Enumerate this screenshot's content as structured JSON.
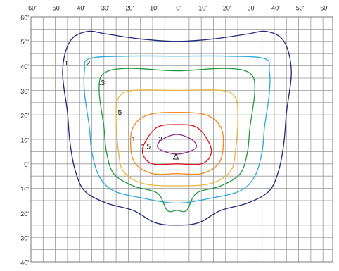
{
  "chart_data": {
    "type": "contour",
    "xlim": [
      -60,
      64
    ],
    "ylim": [
      -40,
      60
    ],
    "xticks": [
      {
        "value": -60,
        "label": "60'"
      },
      {
        "value": -50,
        "label": "50'"
      },
      {
        "value": -40,
        "label": "40'"
      },
      {
        "value": -30,
        "label": "30'"
      },
      {
        "value": -20,
        "label": "20'"
      },
      {
        "value": -10,
        "label": "10'"
      },
      {
        "value": 0,
        "label": "0'"
      },
      {
        "value": 10,
        "label": "10'"
      },
      {
        "value": 20,
        "label": "20'"
      },
      {
        "value": 30,
        "label": "30'"
      },
      {
        "value": 40,
        "label": "40'"
      },
      {
        "value": 50,
        "label": "50'"
      },
      {
        "value": 60,
        "label": "60'"
      }
    ],
    "yticks": [
      {
        "value": 60,
        "label": "60'"
      },
      {
        "value": 50,
        "label": "50'"
      },
      {
        "value": 40,
        "label": "40'"
      },
      {
        "value": 30,
        "label": "30'"
      },
      {
        "value": 20,
        "label": "20'"
      },
      {
        "value": 10,
        "label": "10'"
      },
      {
        "value": 0,
        "label": "0'"
      },
      {
        "value": -10,
        "label": "10'"
      },
      {
        "value": -20,
        "label": "20'"
      },
      {
        "value": -30,
        "label": "30'"
      },
      {
        "value": -40,
        "label": "40'"
      }
    ],
    "grid": true,
    "series": [
      {
        "name": ".1",
        "color": "#1f2a7a",
        "x": [
          0,
          -15,
          -29,
          -37,
          -44,
          -47,
          -45,
          -44,
          -42,
          -38,
          -29,
          -18,
          -9,
          0,
          9,
          18,
          29,
          38,
          42,
          44,
          45,
          47,
          44,
          37,
          29,
          15
        ],
        "y": [
          50,
          51,
          53,
          54,
          50,
          38,
          21,
          9,
          -2,
          -11,
          -16,
          -19,
          -24,
          -25,
          -24,
          -19,
          -16,
          -11,
          -2,
          9,
          21,
          38,
          50,
          54,
          53,
          51
        ]
      },
      {
        "name": ".2",
        "color": "#29a9e0",
        "x": [
          0,
          -20,
          -36,
          -38,
          -38,
          -36,
          -35,
          -32,
          -26,
          -14,
          0,
          14,
          26,
          32,
          35,
          36,
          38,
          38,
          36,
          20
        ],
        "y": [
          44,
          44,
          43,
          38,
          29,
          15,
          5,
          -5,
          -11,
          -14,
          -16,
          -14,
          -11,
          -5,
          5,
          15,
          29,
          38,
          43,
          44
        ]
      },
      {
        "name": ".3",
        "color": "#1f9a3c",
        "x": [
          0,
          -20,
          -30,
          -32,
          -30,
          -29,
          -26,
          -18,
          -8,
          -4,
          0,
          4,
          8,
          18,
          26,
          29,
          30,
          32,
          30,
          20
        ],
        "y": [
          38,
          39,
          37,
          30,
          15,
          5,
          -4,
          -9,
          -12,
          -19,
          -19,
          -19,
          -12,
          -9,
          -4,
          5,
          15,
          30,
          37,
          39
        ]
      },
      {
        "name": ".5",
        "color": "#f0b43c",
        "x": [
          0,
          -18,
          -24,
          -25,
          -24,
          -22,
          -14,
          0,
          14,
          22,
          24,
          25,
          24,
          18
        ],
        "y": [
          30,
          30,
          27,
          18,
          5,
          -3,
          -8,
          -9,
          -8,
          -3,
          5,
          18,
          27,
          30
        ]
      },
      {
        "name": "1",
        "color": "#f28a1e",
        "x": [
          0,
          -12,
          -18,
          -19,
          -17,
          -10,
          0,
          10,
          17,
          19,
          18,
          12
        ],
        "y": [
          21,
          20,
          15,
          7,
          0,
          -4,
          -4,
          -4,
          0,
          7,
          15,
          20
        ]
      },
      {
        "name": "1.5",
        "color": "#d7141e",
        "x": [
          0,
          -8,
          -13,
          -14,
          -10,
          0,
          10,
          14,
          13,
          8
        ],
        "y": [
          16,
          15,
          9,
          4,
          0,
          0,
          0,
          4,
          9,
          15
        ]
      },
      {
        "name": "2",
        "color": "#92278f",
        "x": [
          0,
          -6,
          -8,
          -5,
          0,
          5,
          8,
          6
        ],
        "y": [
          12,
          10,
          7,
          5,
          4,
          5,
          7,
          10
        ]
      }
    ]
  }
}
